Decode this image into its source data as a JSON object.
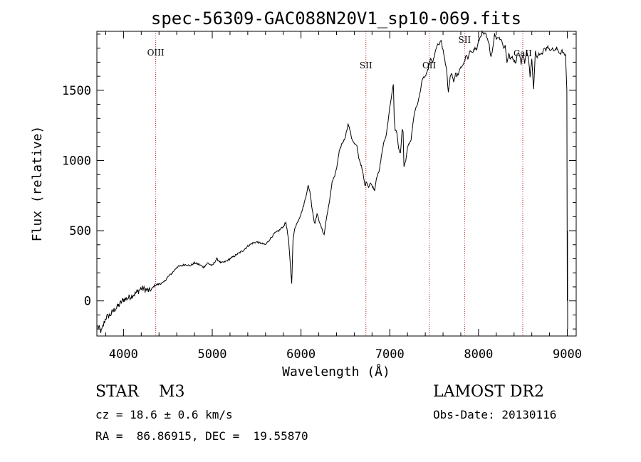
{
  "chart_data": {
    "type": "line",
    "title": "spec-56309-GAC088N20V1_sp10-069.fits",
    "xlabel": "Wavelength (Å)",
    "ylabel": "Flux (relative)",
    "xlim": [
      3700,
      9100
    ],
    "ylim": [
      -250,
      1920
    ],
    "xticks": [
      4000,
      5000,
      6000,
      7000,
      8000,
      9000
    ],
    "yticks": [
      0,
      500,
      1000,
      1500
    ],
    "xtick_labels": [
      "4000",
      "5000",
      "6000",
      "7000",
      "8000",
      "9000"
    ],
    "ytick_labels": [
      "0",
      "500",
      "1000",
      "1500"
    ],
    "grid": false,
    "line_color": "#000000",
    "annotation_color": "#b22222",
    "series": [
      {
        "x": [
          3710,
          3750,
          3800,
          3850,
          3900,
          3950,
          4000,
          4050,
          4100,
          4150,
          4200,
          4250,
          4300,
          4350,
          4400,
          4450,
          4500,
          4550,
          4600,
          4650,
          4700,
          4750,
          4800,
          4850,
          4900,
          4950,
          5000,
          5050,
          5100,
          5150,
          5200,
          5250,
          5300,
          5350,
          5400,
          5450,
          5500,
          5550,
          5600,
          5650,
          5700,
          5750,
          5800,
          5830,
          5860,
          5880,
          5895,
          5910,
          5930,
          5960,
          6000,
          6030,
          6060,
          6080,
          6100,
          6120,
          6140,
          6150,
          6160,
          6180,
          6200,
          6230,
          6260,
          6280,
          6300,
          6320,
          6350,
          6380,
          6400,
          6430,
          6460,
          6490,
          6510,
          6530,
          6550,
          6570,
          6600,
          6630,
          6650,
          6680,
          6700,
          6720,
          6740,
          6760,
          6780,
          6800,
          6830,
          6850,
          6880,
          6910,
          6930,
          6960,
          6980,
          7000,
          7020,
          7040,
          7050,
          7060,
          7080,
          7100,
          7120,
          7140,
          7150,
          7160,
          7180,
          7200,
          7220,
          7240,
          7260,
          7280,
          7300,
          7320,
          7340,
          7360,
          7380,
          7400,
          7420,
          7440,
          7460,
          7480,
          7500,
          7520,
          7540,
          7560,
          7580,
          7600,
          7620,
          7640,
          7660,
          7680,
          7700,
          7720,
          7740,
          7760,
          7780,
          7800,
          7820,
          7840,
          7860,
          7880,
          7900,
          7920,
          7940,
          7960,
          7980,
          8000,
          8020,
          8040,
          8060,
          8080,
          8100,
          8120,
          8140,
          8160,
          8180,
          8200,
          8220,
          8240,
          8260,
          8280,
          8300,
          8320,
          8340,
          8360,
          8380,
          8400,
          8420,
          8440,
          8460,
          8480,
          8500,
          8520,
          8540,
          8560,
          8580,
          8600,
          8620,
          8640,
          8660,
          8680,
          8700,
          8720,
          8740,
          8760,
          8780,
          8800,
          8820,
          8840,
          8860,
          8880,
          8900,
          8920,
          8940,
          8960,
          8980,
          8995,
          9000,
          9002,
          9004
        ],
        "y": [
          -180,
          -220,
          -120,
          -100,
          -60,
          -30,
          10,
          20,
          40,
          60,
          90,
          80,
          70,
          110,
          120,
          130,
          170,
          200,
          240,
          250,
          260,
          250,
          270,
          260,
          240,
          270,
          250,
          300,
          270,
          280,
          300,
          320,
          340,
          360,
          390,
          410,
          420,
          410,
          400,
          440,
          480,
          500,
          530,
          560,
          430,
          250,
          130,
          430,
          520,
          560,
          620,
          680,
          760,
          820,
          780,
          680,
          600,
          560,
          560,
          620,
          580,
          520,
          470,
          560,
          640,
          700,
          850,
          890,
          940,
          1060,
          1120,
          1150,
          1200,
          1260,
          1220,
          1160,
          1120,
          1100,
          1020,
          960,
          900,
          820,
          850,
          810,
          840,
          820,
          790,
          880,
          920,
          1050,
          1120,
          1180,
          1280,
          1380,
          1460,
          1540,
          1300,
          1220,
          1200,
          1080,
          1050,
          1220,
          1200,
          950,
          1000,
          1100,
          1120,
          1150,
          1260,
          1350,
          1380,
          1420,
          1480,
          1560,
          1590,
          1600,
          1620,
          1680,
          1720,
          1700,
          1730,
          1800,
          1820,
          1830,
          1850,
          1780,
          1720,
          1640,
          1480,
          1600,
          1620,
          1560,
          1620,
          1600,
          1630,
          1660,
          1680,
          1700,
          1750,
          1720,
          1770,
          1780,
          1780,
          1800,
          1790,
          1850,
          1880,
          1910,
          1900,
          1900,
          1860,
          1820,
          1740,
          1800,
          1900,
          1870,
          1880,
          1870,
          1860,
          1800,
          1820,
          1700,
          1760,
          1720,
          1740,
          1710,
          1700,
          1770,
          1760,
          1690,
          1760,
          1700,
          1770,
          1750,
          1600,
          1720,
          1500,
          1780,
          1740,
          1760,
          1770,
          1760,
          1800,
          1790,
          1820,
          1780,
          1800,
          1790,
          1780,
          1800,
          1780,
          1760,
          1780,
          1760,
          1750,
          1500,
          0,
          500,
          -200
        ]
      }
    ],
    "annotations": [
      {
        "label": "OIII",
        "x": 4363
      },
      {
        "label": "SII",
        "x": 6731
      },
      {
        "label": "OII",
        "x": 7444
      },
      {
        "label": "SII",
        "x": 7843
      },
      {
        "label": "CaII",
        "x": 8498
      }
    ]
  },
  "info": {
    "class_text": "STAR    M3",
    "survey_text": "LAMOST DR2",
    "cz_text": "cz = 18.6 ± 0.6 km/s",
    "obs_date_text": "Obs-Date: 20130116",
    "radec_text": "RA =  86.86915, DEC =  19.55870"
  }
}
